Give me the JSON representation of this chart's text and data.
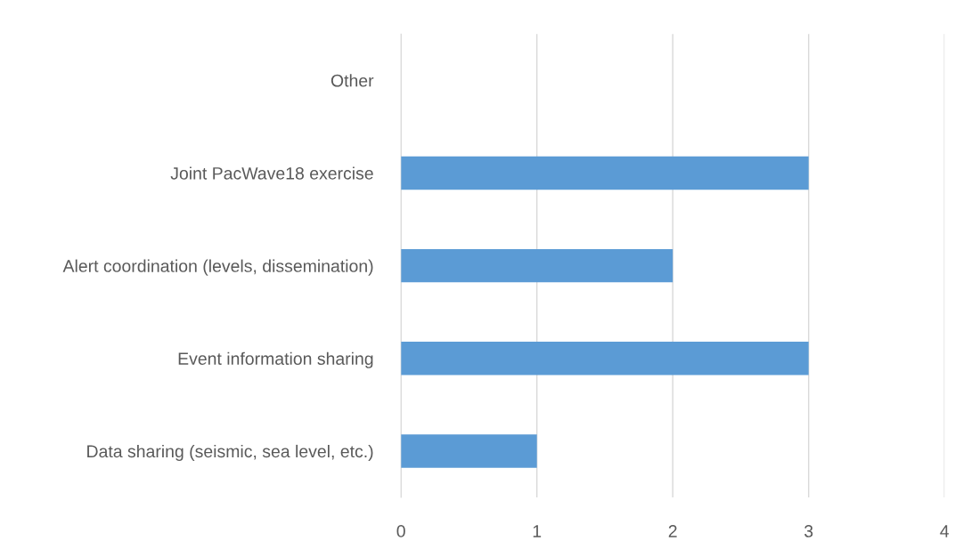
{
  "chart_data": {
    "type": "bar",
    "orientation": "horizontal",
    "categories": [
      "Other",
      "Joint PacWave18 exercise",
      "Alert coordination (levels, dissemination)",
      "Event information sharing",
      "Data sharing (seismic, sea level, etc.)"
    ],
    "values": [
      0,
      3,
      2,
      3,
      1
    ],
    "color": "#5b9bd5",
    "xlim": [
      0,
      4
    ],
    "xticks": [
      0,
      1,
      2,
      3,
      4
    ],
    "grid": "x",
    "legend": false
  }
}
